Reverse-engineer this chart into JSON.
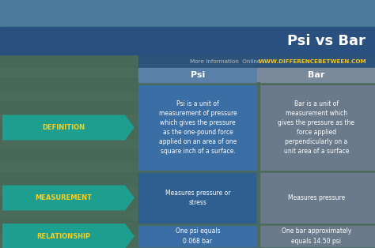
{
  "title": "Psi vs Bar",
  "subtitle_left": "More Information  Online",
  "subtitle_right": "WWW.DIFFERENCEBETWEEN.COM",
  "col1_header": "Psi",
  "col2_header": "Bar",
  "rows": [
    {
      "label": "DEFINITION",
      "col1": "Psi is a unit of\nmeasurement of pressure\nwhich gives the pressure\nas the one-pound force\napplied on an area of one\nsquare inch of a surface.",
      "col2": "Bar is a unit of\nmeasurement which\ngives the pressure as the\nforce applied\nperpendicularly on a\nunit area of a surface"
    },
    {
      "label": "MEASUREMENT",
      "col1": "Measures pressure or\nstress",
      "col2": "Measures pressure"
    },
    {
      "label": "RELATIONSHIP",
      "col1": "One psi equals\n0.068 bar",
      "col2": "One bar approximately\nequals 14.50 psi"
    }
  ],
  "title_bg": "#2a5080",
  "title_text": "#ffffff",
  "subtitle_bg": "#2a5080",
  "subtitle_left_color": "#bbbbbb",
  "subtitle_right_color": "#f5c518",
  "header_psi_bg": "#5a80aa",
  "header_bar_bg": "#7a8a9a",
  "label_bg": "#1e9e8e",
  "row_psi_colors": [
    "#3a6ea5",
    "#2e5f90",
    "#3a6ea5"
  ],
  "row_bar_colors": [
    "#6a7a8a",
    "#6a7a8a",
    "#6a7a8a"
  ],
  "gap_color": "#4a6a5a",
  "bg_top_color": "#3a5a7a",
  "bg_bottom_color": "#4a6a4a",
  "label_text_color": "#f5d020",
  "text_color": "#ffffff",
  "figsize": [
    4.74,
    3.14
  ],
  "dpi": 100
}
